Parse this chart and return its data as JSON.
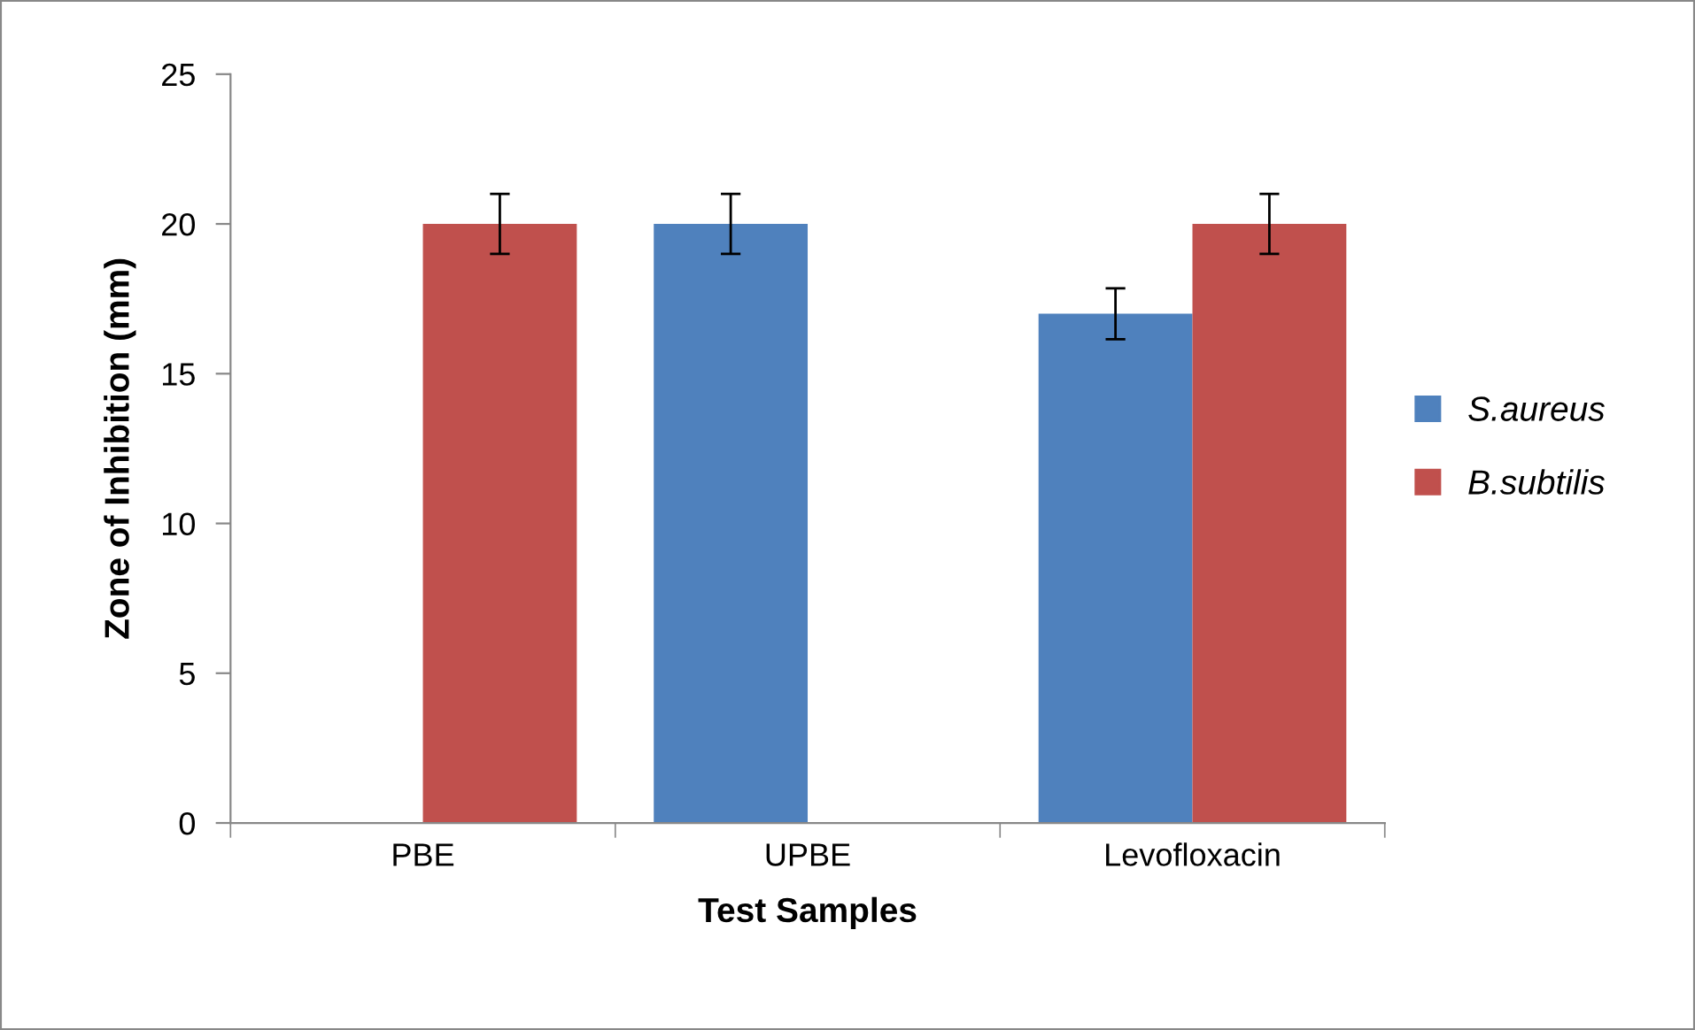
{
  "chart_data": {
    "type": "bar",
    "xlabel": "Test Samples",
    "ylabel": "Zone of Inhibition (mm)",
    "categories": [
      "PBE",
      "UPBE",
      "Levofloxacin"
    ],
    "series": [
      {
        "name": "S.aureus",
        "color": "#4f81bd",
        "values": [
          0,
          20,
          17
        ],
        "errors": [
          null,
          1,
          0.85
        ]
      },
      {
        "name": "B.subtilis",
        "color": "#c0504d",
        "values": [
          20,
          0,
          20
        ],
        "errors": [
          1,
          null,
          1
        ]
      }
    ],
    "ylim": [
      0,
      25
    ],
    "yticks": [
      0,
      5,
      10,
      15,
      20,
      25
    ],
    "grid": false,
    "legend": "right"
  }
}
